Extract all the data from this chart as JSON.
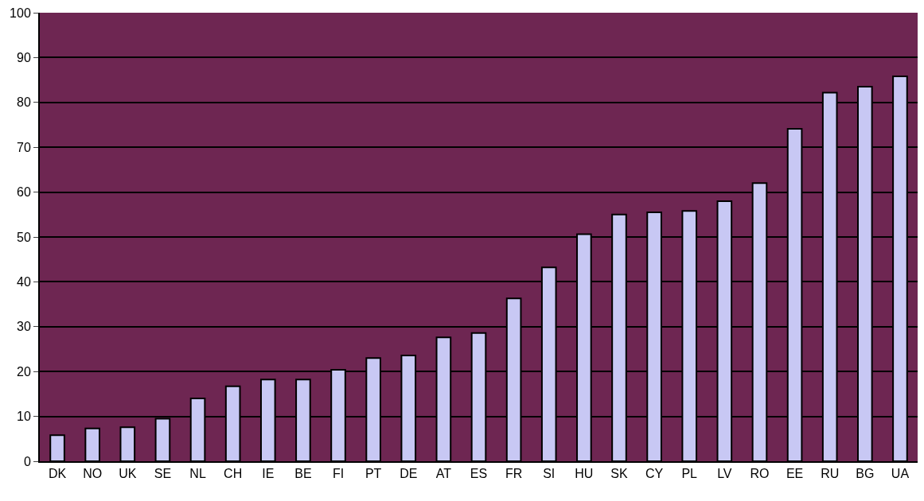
{
  "chart_data": {
    "type": "bar",
    "categories": [
      "DK",
      "NO",
      "UK",
      "SE",
      "NL",
      "CH",
      "IE",
      "BE",
      "FI",
      "PT",
      "DE",
      "AT",
      "ES",
      "FR",
      "SI",
      "HU",
      "SK",
      "CY",
      "PL",
      "LV",
      "RO",
      "EE",
      "RU",
      "BG",
      "UA"
    ],
    "values": [
      5.8,
      7.3,
      7.6,
      9.5,
      14,
      16.7,
      18.2,
      18.2,
      20.4,
      23,
      23.6,
      27.6,
      28.6,
      36.3,
      43.2,
      50.6,
      55,
      55.5,
      55.8,
      58,
      62,
      74.1,
      82.2,
      83.5,
      85.8
    ],
    "color": "#c8c8f4",
    "ylim": [
      0,
      100
    ],
    "yticks": [
      0,
      10,
      20,
      30,
      40,
      50,
      60,
      70,
      80,
      90,
      100
    ],
    "grid": "y"
  }
}
